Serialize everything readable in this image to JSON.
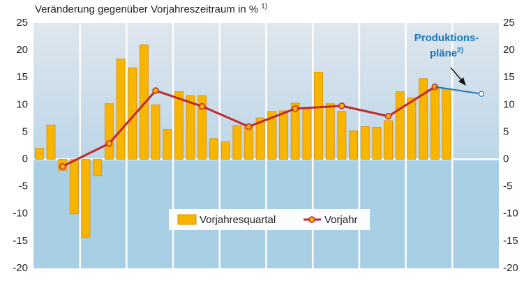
{
  "chart_data": {
    "type": "combo",
    "title": "Veränderung gegenüber Vorjahreszeitraum in %",
    "title_note": "1)",
    "annotation": [
      "Produktions-",
      "pläne"
    ],
    "annotation_note": "2)",
    "categories": [
      null,
      null,
      null,
      null,
      null,
      null,
      null,
      null,
      null,
      null,
      null,
      null,
      null,
      null,
      null,
      null,
      null,
      null,
      null,
      null,
      null,
      null,
      null,
      null,
      null,
      null,
      null,
      null,
      null,
      null,
      null,
      null,
      null,
      null,
      null,
      null,
      null,
      null,
      null,
      null
    ],
    "series": [
      {
        "name": "Vorjahresquartal",
        "type": "bar",
        "color": "#f7b500",
        "values": [
          2,
          6.3,
          -2,
          -10,
          -14.3,
          -3,
          10.2,
          18.4,
          16.8,
          21,
          10,
          5.5,
          12.4,
          11.7,
          11.7,
          3.8,
          3.2,
          6.2,
          6,
          7.6,
          8.8,
          8.9,
          10.3,
          9.2,
          16,
          10.2,
          8.8,
          5.2,
          6,
          5.9,
          7.1,
          12.4,
          11.3,
          14.8,
          13,
          12.9,
          null,
          null,
          null,
          null
        ]
      },
      {
        "name": "Vorjahr",
        "type": "line",
        "color": "#c0282d",
        "values": [
          null,
          null,
          -1.3,
          null,
          null,
          null,
          2.9,
          null,
          null,
          null,
          12.6,
          null,
          null,
          null,
          9.7,
          null,
          null,
          null,
          6,
          null,
          null,
          null,
          9.3,
          null,
          null,
          null,
          9.8,
          null,
          null,
          null,
          7.9,
          null,
          null,
          null,
          13.3,
          null,
          null,
          null,
          null,
          null
        ]
      }
    ],
    "projection": {
      "color": "#1a76b8",
      "values": [
        null,
        null,
        null,
        null,
        null,
        null,
        null,
        null,
        null,
        null,
        null,
        null,
        null,
        null,
        null,
        null,
        null,
        null,
        null,
        null,
        null,
        null,
        null,
        null,
        null,
        null,
        null,
        null,
        null,
        null,
        null,
        null,
        null,
        null,
        13.3,
        null,
        null,
        null,
        12,
        null
      ]
    },
    "ylim": [
      -20,
      25
    ],
    "yticks": [
      -20,
      -15,
      -10,
      -5,
      0,
      5,
      10,
      15,
      20,
      25
    ]
  }
}
